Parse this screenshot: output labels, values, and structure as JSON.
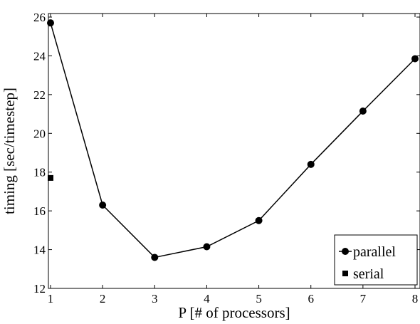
{
  "chart_data": {
    "type": "line",
    "title": "",
    "xlabel": "P [# of processors]",
    "ylabel": "timing [sec/timestep]",
    "xlim": [
      1,
      8
    ],
    "ylim": [
      12,
      26
    ],
    "x_ticks": [
      1,
      2,
      3,
      4,
      5,
      6,
      7,
      8
    ],
    "y_ticks": [
      12,
      14,
      16,
      18,
      20,
      22,
      24,
      26
    ],
    "grid": false,
    "legend_position": "bottom-right",
    "series": [
      {
        "name": "parallel",
        "marker": "circle",
        "line": true,
        "color": "#000000",
        "x": [
          1,
          2,
          3,
          4,
          5,
          6,
          7,
          8
        ],
        "y": [
          25.7,
          16.3,
          13.6,
          14.15,
          15.5,
          18.4,
          21.15,
          23.85
        ]
      },
      {
        "name": "serial",
        "marker": "square",
        "line": false,
        "color": "#000000",
        "x": [
          1
        ],
        "y": [
          17.7
        ]
      }
    ]
  }
}
